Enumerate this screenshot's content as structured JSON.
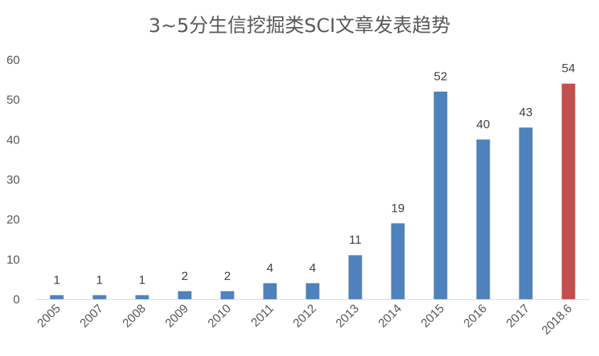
{
  "chart_data": {
    "type": "bar",
    "title": "3~5分生信挖掘类SCI文章发表趋势",
    "categories": [
      "2005",
      "2007",
      "2008",
      "2009",
      "2010",
      "2011",
      "2012",
      "2013",
      "2014",
      "2015",
      "2016",
      "2017",
      "2018.6"
    ],
    "values": [
      1,
      1,
      1,
      2,
      2,
      4,
      4,
      11,
      19,
      52,
      40,
      43,
      54
    ],
    "bar_colors": [
      "#4f81bd",
      "#4f81bd",
      "#4f81bd",
      "#4f81bd",
      "#4f81bd",
      "#4f81bd",
      "#4f81bd",
      "#4f81bd",
      "#4f81bd",
      "#4f81bd",
      "#4f81bd",
      "#4f81bd",
      "#c0504d"
    ],
    "data_labels": [
      "1",
      "1",
      "1",
      "2",
      "2",
      "4",
      "4",
      "11",
      "19",
      "52",
      "40",
      "43",
      "54"
    ],
    "ylim": [
      0,
      60
    ],
    "yticks": [
      "0",
      "10",
      "20",
      "30",
      "40",
      "50",
      "60"
    ],
    "xlabel": "",
    "ylabel": "",
    "grid": false,
    "legend": "none"
  }
}
